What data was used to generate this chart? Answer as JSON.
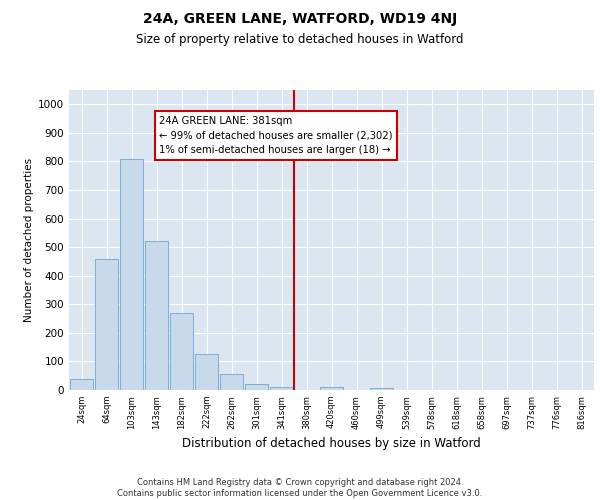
{
  "title": "24A, GREEN LANE, WATFORD, WD19 4NJ",
  "subtitle": "Size of property relative to detached houses in Watford",
  "xlabel": "Distribution of detached houses by size in Watford",
  "ylabel": "Number of detached properties",
  "categories": [
    "24sqm",
    "64sqm",
    "103sqm",
    "143sqm",
    "182sqm",
    "222sqm",
    "262sqm",
    "301sqm",
    "341sqm",
    "380sqm",
    "420sqm",
    "460sqm",
    "499sqm",
    "539sqm",
    "578sqm",
    "618sqm",
    "658sqm",
    "697sqm",
    "737sqm",
    "776sqm",
    "816sqm"
  ],
  "values": [
    40,
    460,
    810,
    520,
    270,
    125,
    55,
    22,
    12,
    0,
    12,
    0,
    8,
    0,
    0,
    0,
    0,
    0,
    0,
    0,
    0
  ],
  "bar_color": "#c8d9ec",
  "bar_edge_color": "#7aafd4",
  "vline_x_index": 8.5,
  "vline_color": "#cc0000",
  "annotation_text": "24A GREEN LANE: 381sqm\n← 99% of detached houses are smaller (2,302)\n1% of semi-detached houses are larger (18) →",
  "annotation_box_color": "#cc0000",
  "ylim": [
    0,
    1050
  ],
  "yticks": [
    0,
    100,
    200,
    300,
    400,
    500,
    600,
    700,
    800,
    900,
    1000
  ],
  "bg_color": "#dce6f0",
  "footer": "Contains HM Land Registry data © Crown copyright and database right 2024.\nContains public sector information licensed under the Open Government Licence v3.0."
}
